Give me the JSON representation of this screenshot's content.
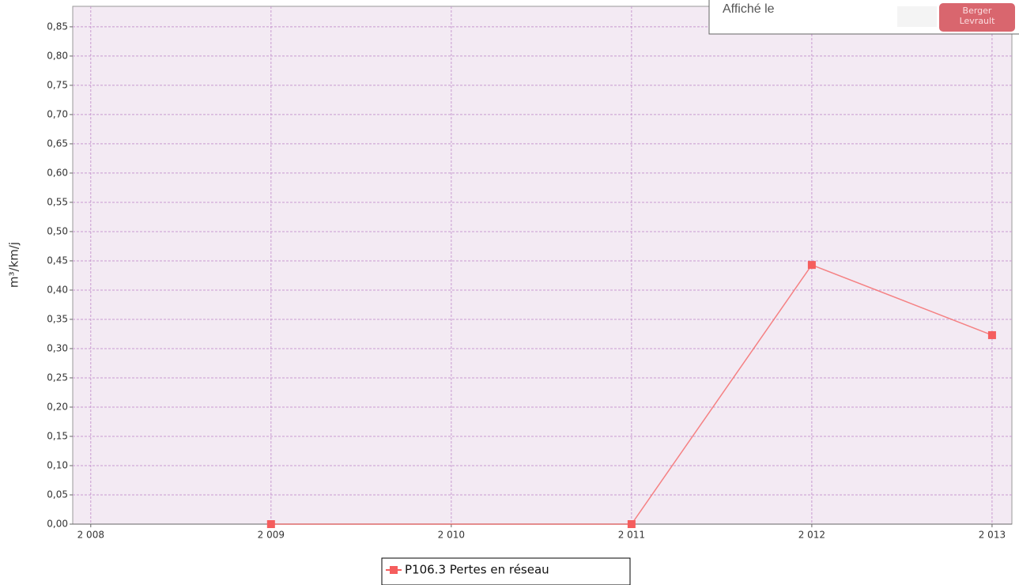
{
  "chart_data": {
    "type": "line",
    "y_label": "m³/km/j",
    "x": [
      2009,
      2011,
      2012,
      2013
    ],
    "series": [
      {
        "name": "P106.3 Pertes en réseau",
        "color": "#f55d5d",
        "values": [
          0,
          0,
          0.443,
          0.323
        ]
      }
    ],
    "xlim": [
      2007.9,
      2013.11
    ],
    "xticks": [
      {
        "value": 2008,
        "label": "2 008"
      },
      {
        "value": 2009,
        "label": "2 009"
      },
      {
        "value": 2010,
        "label": "2 010"
      },
      {
        "value": 2011,
        "label": "2 011"
      },
      {
        "value": 2012,
        "label": "2 012"
      },
      {
        "value": 2013,
        "label": "2 013"
      }
    ],
    "ylim": [
      0,
      0.885
    ],
    "yticks": [
      {
        "value": 0,
        "label": "0,00"
      },
      {
        "value": 0.05,
        "label": "0,05"
      },
      {
        "value": 0.1,
        "label": "0,10"
      },
      {
        "value": 0.15,
        "label": "0,15"
      },
      {
        "value": 0.2,
        "label": "0,20"
      },
      {
        "value": 0.25,
        "label": "0,25"
      },
      {
        "value": 0.3,
        "label": "0,30"
      },
      {
        "value": 0.35,
        "label": "0,35"
      },
      {
        "value": 0.4,
        "label": "0,40"
      },
      {
        "value": 0.45,
        "label": "0,45"
      },
      {
        "value": 0.5,
        "label": "0,50"
      },
      {
        "value": 0.55,
        "label": "0,55"
      },
      {
        "value": 0.6,
        "label": "0,60"
      },
      {
        "value": 0.65,
        "label": "0,65"
      },
      {
        "value": 0.7,
        "label": "0,70"
      },
      {
        "value": 0.75,
        "label": "0,75"
      },
      {
        "value": 0.8,
        "label": "0,80"
      },
      {
        "value": 0.85,
        "label": "0,85"
      }
    ],
    "grid": true,
    "legend": "bottom"
  },
  "overlay": {
    "label": "Affiché le",
    "logo": [
      "Berger",
      "Levrault"
    ]
  }
}
